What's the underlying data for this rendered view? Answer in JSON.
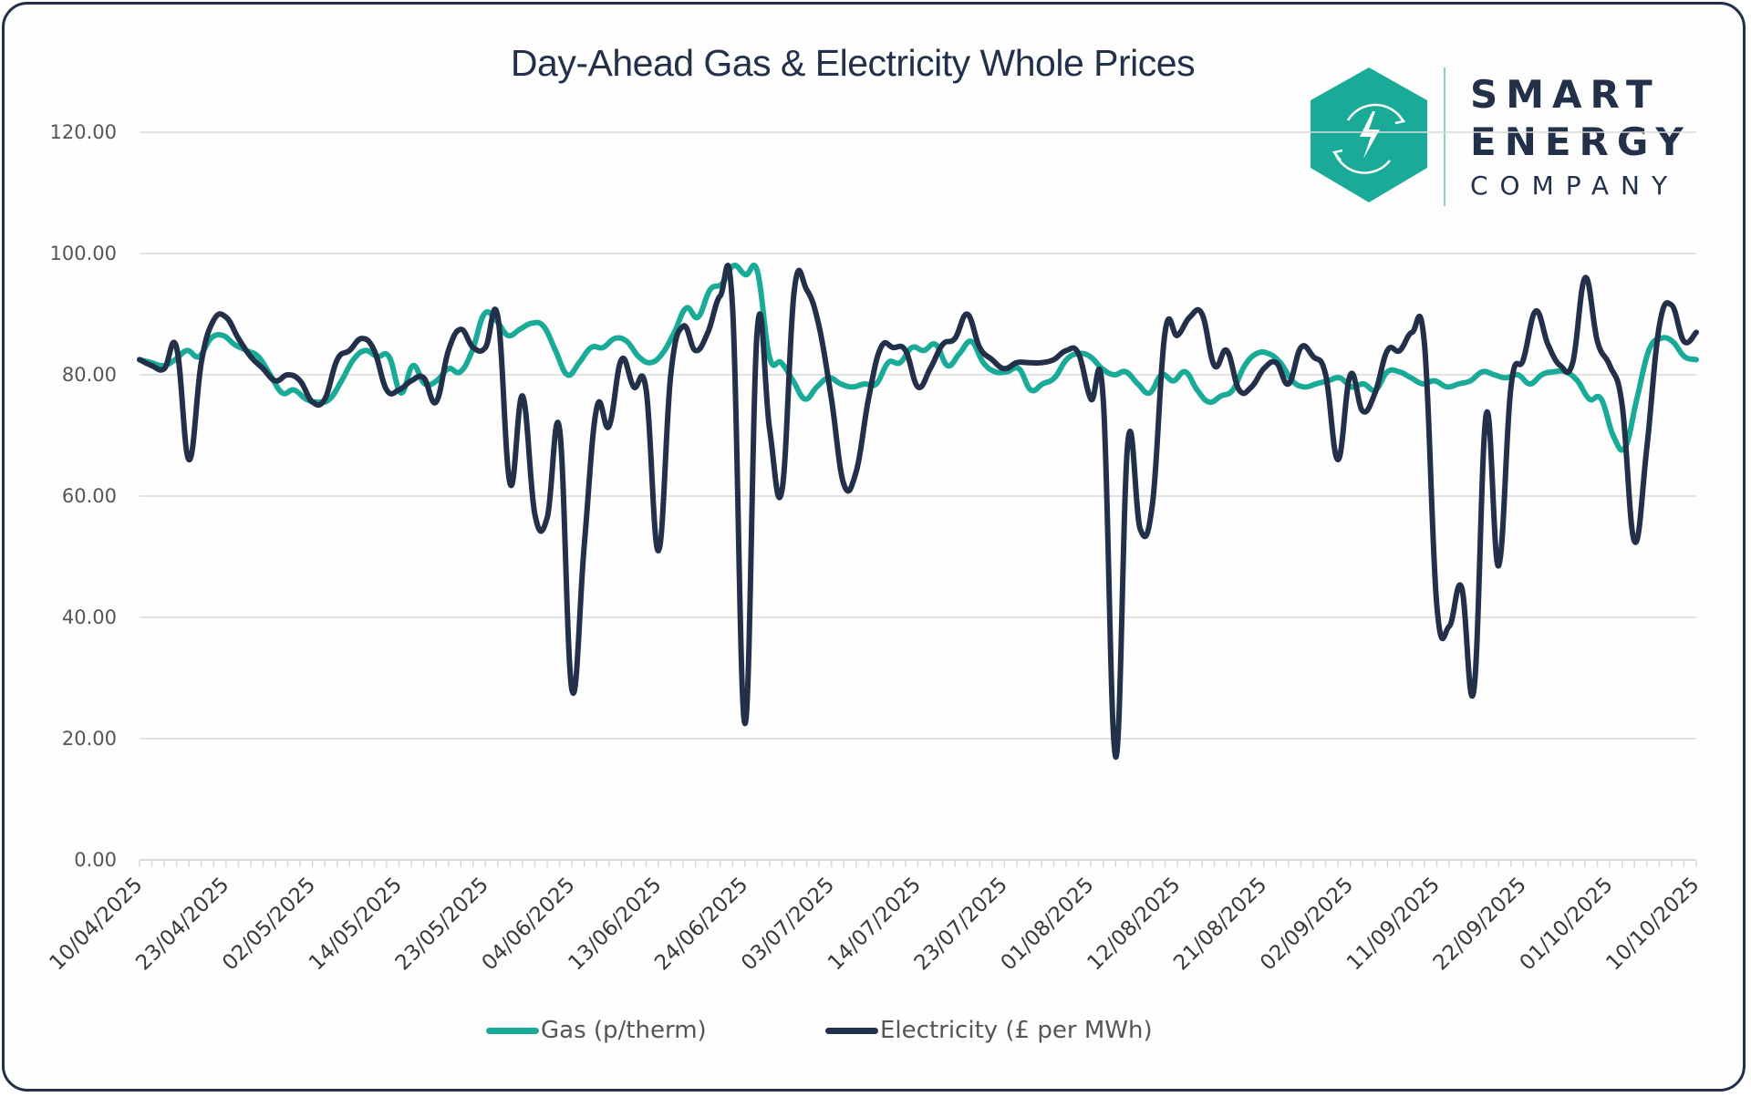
{
  "logo": {
    "line1": "SMART",
    "line2": "ENERGY",
    "line3": "COMPANY",
    "icon": "lightning-bolt-cycle-icon",
    "colors": {
      "hexagon": "#1aab98",
      "text": "#22304a"
    }
  },
  "chart_data": {
    "type": "line",
    "title": "Day-Ahead Gas & Electricity Whole Prices",
    "xlabel": "",
    "ylabel": "",
    "ylim": [
      0,
      120
    ],
    "yticks": [
      "0.00",
      "20.00",
      "40.00",
      "60.00",
      "80.00",
      "100.00",
      "120.00"
    ],
    "grid": true,
    "legend_position": "bottom",
    "x_tick_labels": [
      "10/04/2025",
      "23/04/2025",
      "02/05/2025",
      "14/05/2025",
      "23/05/2025",
      "04/06/2025",
      "13/06/2025",
      "24/06/2025",
      "03/07/2025",
      "14/07/2025",
      "23/07/2025",
      "01/08/2025",
      "12/08/2025",
      "21/08/2025",
      "02/09/2025",
      "11/09/2025",
      "22/09/2025",
      "01/10/2025",
      "10/10/2025"
    ],
    "series": [
      {
        "name": "Gas (p/therm)",
        "color": "#1aab98",
        "values": [
          82.5,
          82.0,
          81.5,
          82.5,
          84.0,
          83.0,
          86.0,
          86.5,
          85.0,
          84.0,
          83.0,
          80.0,
          77.0,
          77.5,
          76.0,
          75.5,
          76.0,
          79.0,
          82.5,
          84.0,
          83.0,
          83.0,
          77.0,
          81.5,
          78.5,
          79.0,
          81.0,
          80.5,
          84.0,
          90.0,
          89.0,
          86.5,
          87.5,
          88.5,
          88.0,
          84.0,
          80.0,
          82.0,
          84.5,
          84.5,
          86.0,
          85.5,
          83.0,
          82.0,
          83.5,
          87.0,
          91.0,
          89.5,
          94.0,
          95.0,
          98.0,
          96.5,
          97.0,
          83.0,
          82.0,
          79.0,
          76.0,
          78.0,
          79.5,
          78.5,
          78.0,
          78.5,
          78.5,
          82.0,
          82.0,
          84.5,
          84.0,
          85.0,
          81.5,
          83.5,
          85.5,
          82.0,
          80.5,
          80.5,
          81.0,
          77.5,
          78.5,
          79.5,
          82.5,
          83.5,
          83.0,
          81.0,
          80.0,
          80.5,
          78.5,
          77.0,
          80.0,
          79.0,
          80.5,
          77.5,
          75.5,
          76.5,
          77.5,
          81.5,
          83.5,
          83.5,
          82.0,
          79.0,
          78.0,
          78.5,
          79.0,
          79.5,
          78.0,
          78.5,
          77.5,
          80.5,
          80.5,
          79.5,
          78.5,
          79.0,
          78.0,
          78.5,
          79.0,
          80.5,
          80.0,
          79.5,
          80.0,
          78.5,
          80.0,
          80.5,
          80.5,
          79.0,
          76.0,
          76.0,
          70.0,
          68.0,
          76.0,
          84.0,
          86.0,
          85.5,
          83.0,
          82.5
        ]
      },
      {
        "name": "Electricity (£ per MWh)",
        "color": "#22304a",
        "values": [
          82.5,
          81.5,
          81.0,
          84.5,
          66.0,
          82.0,
          89.0,
          89.5,
          86.0,
          83.0,
          81.0,
          79.0,
          80.0,
          79.0,
          75.5,
          76.0,
          82.5,
          84.0,
          86.0,
          84.0,
          77.5,
          77.5,
          79.0,
          79.5,
          75.5,
          84.0,
          87.5,
          84.5,
          84.5,
          89.5,
          62.0,
          76.5,
          57.0,
          56.5,
          71.0,
          28.0,
          52.0,
          74.5,
          71.5,
          82.5,
          78.0,
          77.5,
          51.0,
          80.0,
          88.0,
          84.0,
          87.0,
          93.0,
          91.0,
          22.5,
          87.5,
          71.0,
          61.0,
          94.0,
          94.0,
          88.0,
          76.0,
          62.0,
          64.0,
          76.0,
          84.5,
          84.5,
          84.0,
          78.0,
          81.0,
          85.0,
          86.0,
          90.0,
          84.5,
          82.5,
          81.0,
          82.0,
          82.0,
          82.0,
          82.5,
          84.0,
          83.5,
          76.0,
          76.0,
          17.0,
          69.0,
          54.5,
          59.0,
          87.0,
          86.5,
          89.5,
          90.0,
          81.5,
          84.0,
          77.5,
          78.0,
          81.0,
          82.0,
          78.5,
          84.5,
          83.0,
          80.0,
          66.0,
          80.0,
          74.0,
          77.0,
          84.0,
          84.0,
          87.0,
          85.0,
          42.0,
          38.5,
          45.0,
          28.0,
          73.5,
          48.5,
          78.0,
          82.5,
          90.5,
          85.0,
          81.5,
          82.0,
          96.0,
          85.5,
          81.5,
          75.0,
          52.5,
          68.0,
          88.0,
          91.5,
          85.5,
          87.0
        ]
      }
    ]
  }
}
